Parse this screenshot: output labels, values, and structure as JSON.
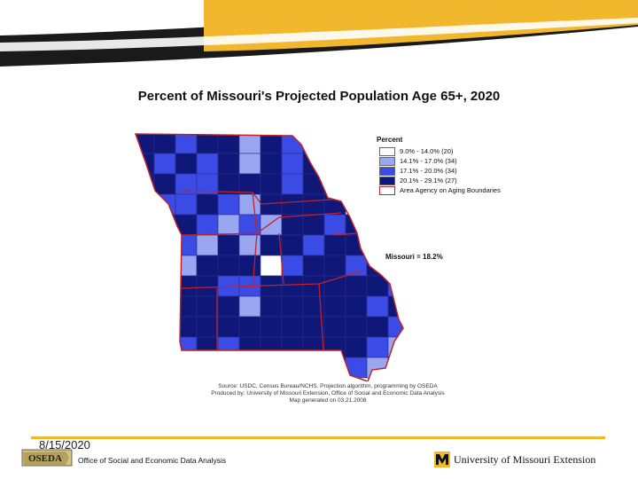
{
  "slide": {
    "title": "Percent of Missouri's Projected Population Age 65+, 2020",
    "date": "8/15/2020",
    "office": "Office of Social and Economic Data Analysis",
    "oseda_logo_text": "OSEDA",
    "university": "University of Missouri Extension"
  },
  "legend": {
    "title": "Percent",
    "items": [
      {
        "label": "9.0% - 14.0% (20)",
        "color": "#ffffff"
      },
      {
        "label": "14.1% - 17.0% (34)",
        "color": "#9aa6f0"
      },
      {
        "label": "17.1% - 20.0% (34)",
        "color": "#3a4be6"
      },
      {
        "label": "20.1% - 29.1% (27)",
        "color": "#0f1778"
      }
    ],
    "boundary_label": "Area Agency on Aging Boundaries",
    "boundary_color": "#c0232b"
  },
  "state_average": "Missouri = 18.2%",
  "source_lines": [
    "Source: USDC, Census Bureau/NCHS. Projection algorithm, programming by OSEDA",
    "Produced by: University of Missouri Extension, Office of Social and Economic Data Analysis",
    "Map generated on 03.21.2008"
  ],
  "colors": {
    "banner_gold": "#f1b82d",
    "banner_dark": "#1a1a1a"
  }
}
